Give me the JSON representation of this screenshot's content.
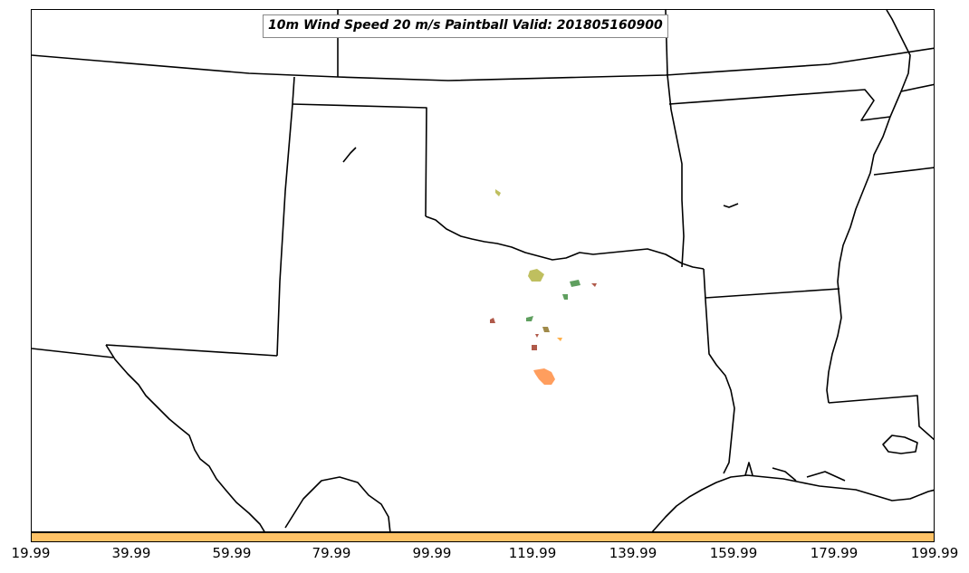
{
  "map": {
    "title": "10m Wind Speed 20 m/s Paintball Valid: 201805160900",
    "colorbar_color": "#ffc266",
    "colorbar_ticks": [
      "19.99",
      "39.99",
      "59.99",
      "79.99",
      "99.99",
      "119.99",
      "139.99",
      "159.99",
      "179.99",
      "199.99"
    ],
    "paintball_colors": {
      "olive": "#bfbf5f",
      "green": "#5f9f5f",
      "red": "#b05a4a",
      "orange": "#ff9e5e",
      "light-orange": "#ffb04a",
      "tan": "#a08a4a"
    }
  }
}
